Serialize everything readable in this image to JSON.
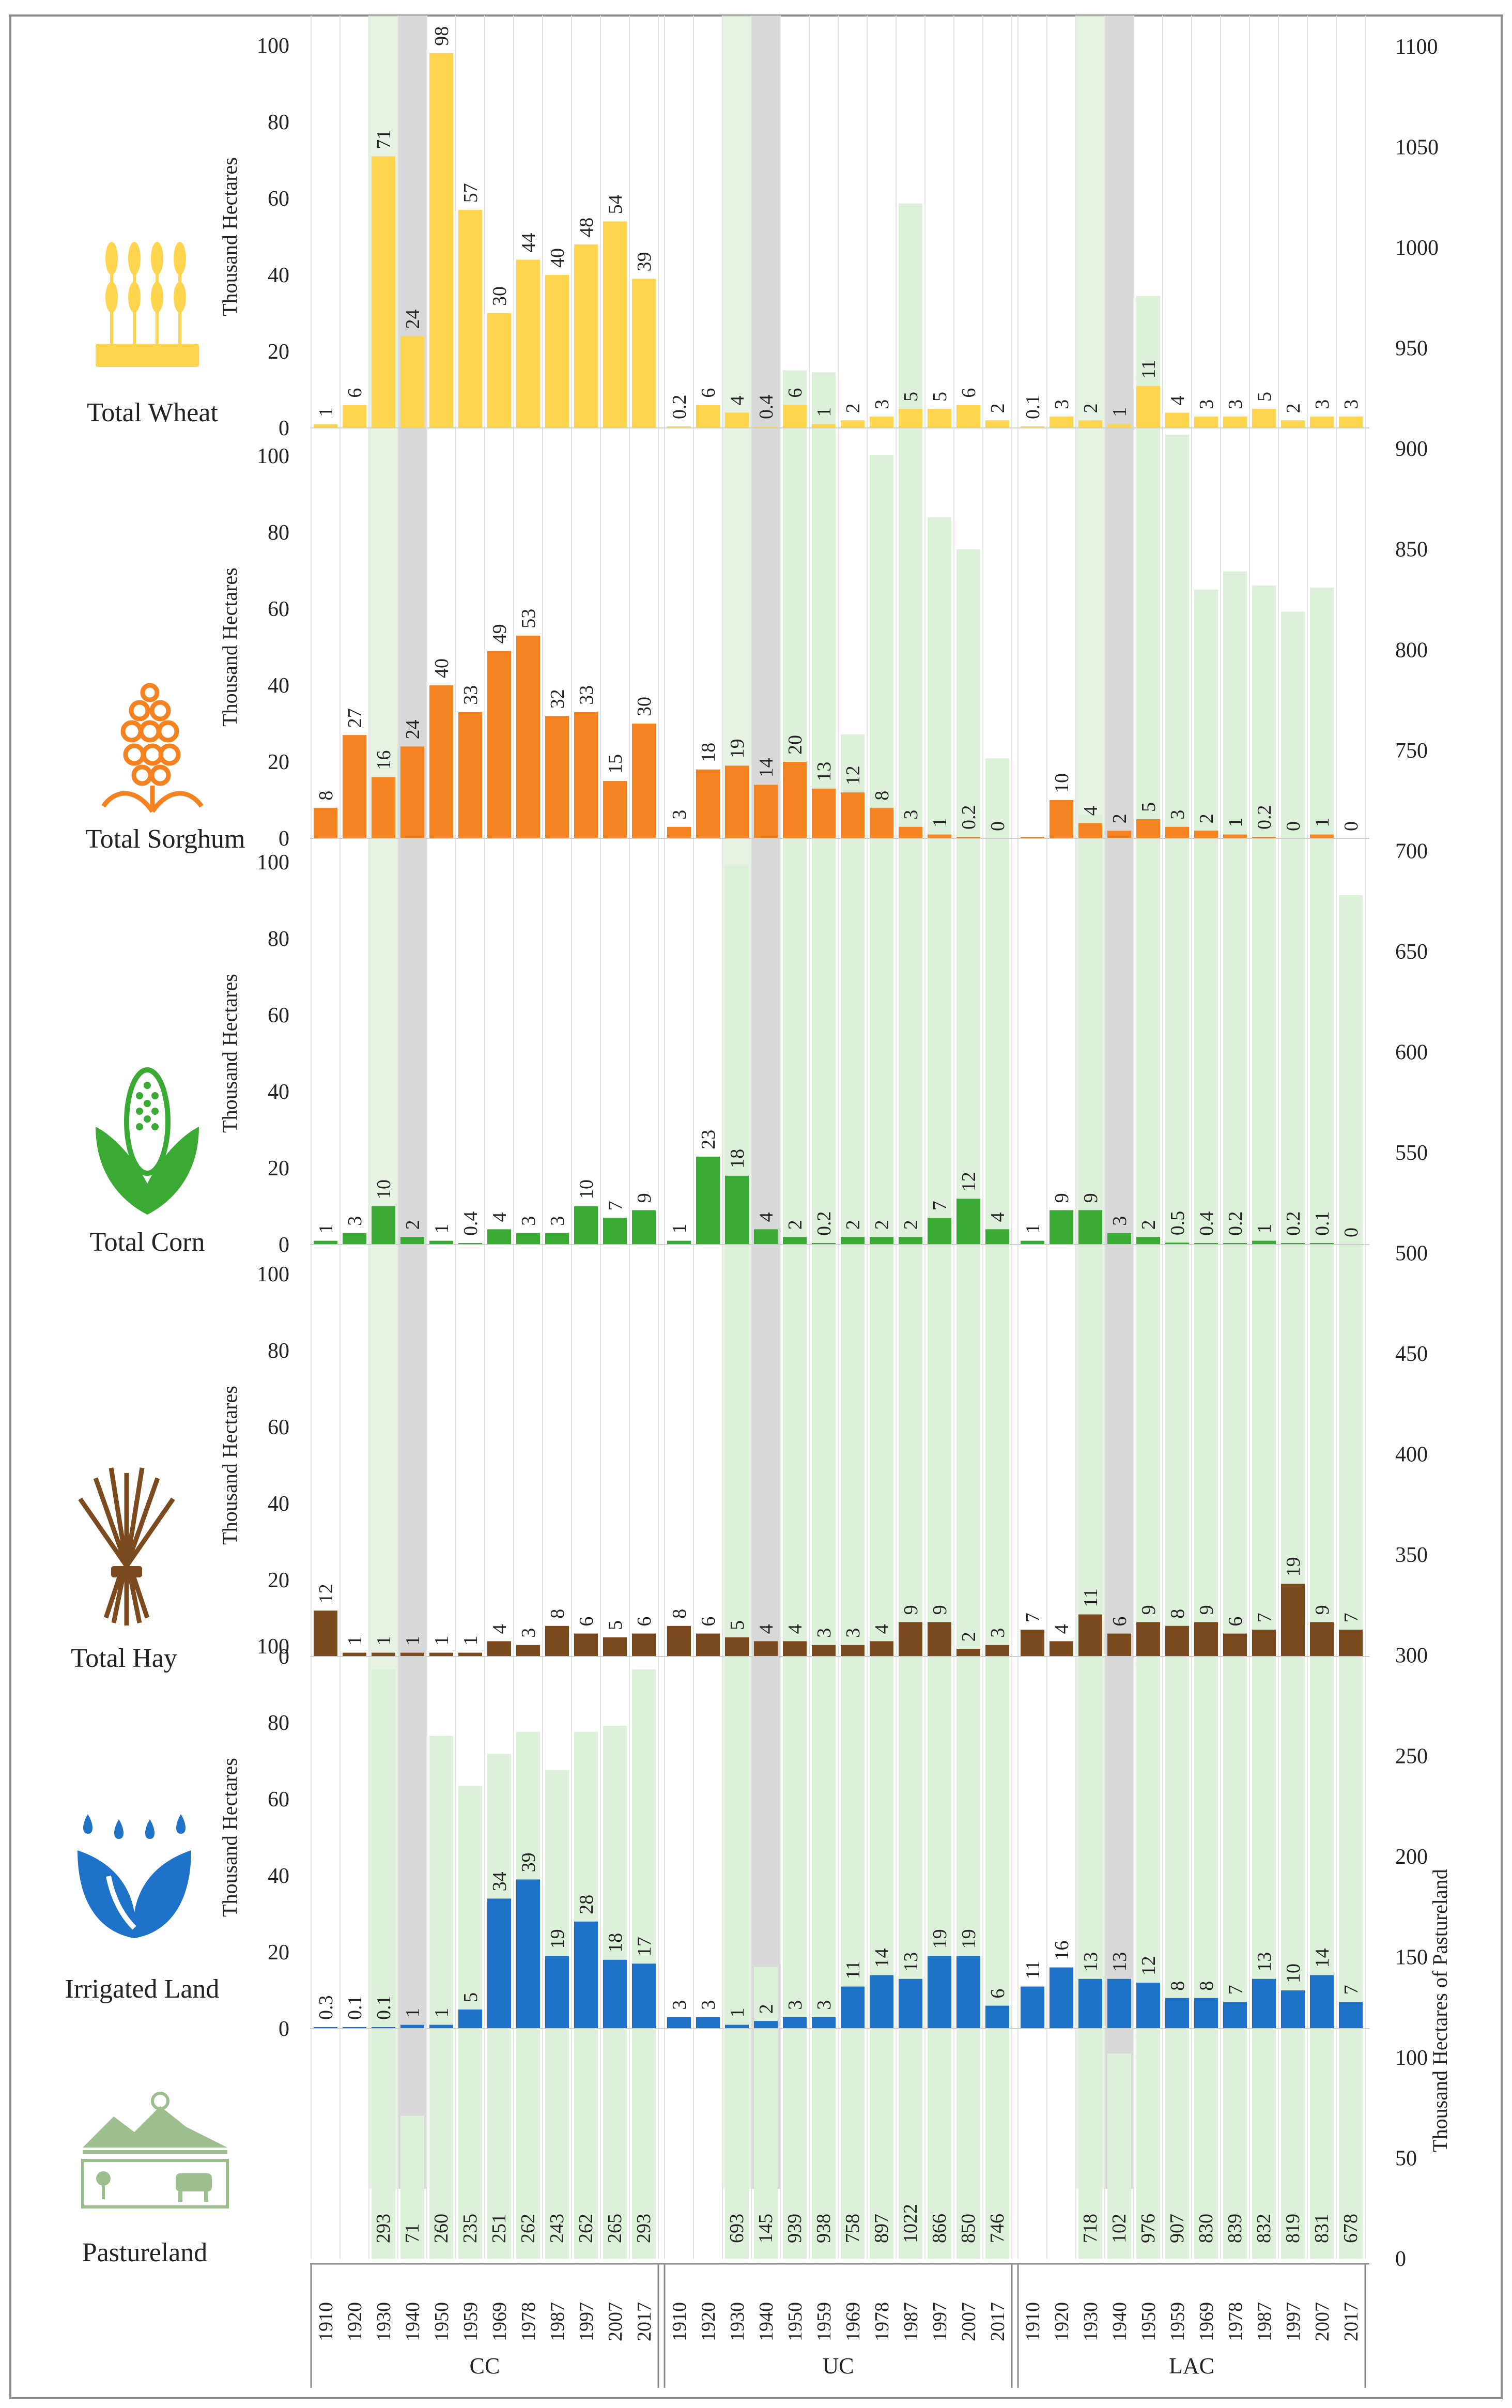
{
  "colors": {
    "wheat": "#FFD54F",
    "sorghum": "#F58220",
    "corn": "#3AAA35",
    "hay": "#7B4A1E",
    "irrigated": "#1E73C8",
    "pasture": "#DDF0D9",
    "pasture_icon": "#9DBF8F",
    "drought_band": "#D8D8D8",
    "frame": "#8C8C8C"
  },
  "icons": {
    "wheat": "wheat-icon",
    "sorghum": "sorghum-icon",
    "corn": "corn-icon",
    "hay": "hay-bundle-icon",
    "irrigated": "water-drops-icon",
    "pasture": "pasture-landscape-icon"
  },
  "chart_data": {
    "type": "bar",
    "left_axis": {
      "label": "Thousand Hectares",
      "ticks": [
        "0",
        "20",
        "40",
        "60",
        "80",
        "100"
      ],
      "ylim": [
        0,
        100
      ]
    },
    "right_axis": {
      "label": "Thousand Hectares of Pastureland",
      "ticks": [
        "0",
        "50",
        "100",
        "150",
        "200",
        "250",
        "300",
        "350",
        "400",
        "450",
        "500",
        "550",
        "600",
        "650",
        "700",
        "750",
        "800",
        "850",
        "900",
        "950",
        "1000",
        "1050",
        "1100"
      ],
      "ylim": [
        0,
        1100
      ]
    },
    "years": [
      "1910",
      "1920",
      "1930",
      "1940",
      "1950",
      "1959",
      "1969",
      "1978",
      "1987",
      "1997",
      "2007",
      "2017"
    ],
    "groups": [
      "CC",
      "UC",
      "LAC"
    ],
    "highlighted_years": [
      "1930",
      "1940"
    ],
    "panels": [
      {
        "key": "wheat",
        "name": "Total Wheat",
        "values": {
          "CC": [
            1,
            6,
            71,
            24,
            98,
            57,
            30,
            44,
            40,
            48,
            54,
            39
          ],
          "UC": [
            0.2,
            6,
            4,
            0.4,
            6,
            1,
            2,
            3,
            5,
            5,
            6,
            2
          ],
          "LAC": [
            0.1,
            3,
            2,
            1,
            11,
            4,
            3,
            3,
            5,
            2,
            3,
            3
          ]
        },
        "labels": {
          "CC": [
            "1",
            "6",
            "71",
            "24",
            "98",
            "57",
            "30",
            "44",
            "40",
            "48",
            "54",
            "39"
          ],
          "UC": [
            "0.2",
            "6",
            "4",
            "0.4",
            "6",
            "1",
            "2",
            "3",
            "5",
            "5",
            "6",
            "2"
          ],
          "LAC": [
            "0.1",
            "3",
            "2",
            "1",
            "11",
            "4",
            "3",
            "3",
            "5",
            "2",
            "3",
            "3"
          ]
        }
      },
      {
        "key": "sorghum",
        "name": "Total Sorghum",
        "values": {
          "CC": [
            8,
            27,
            16,
            24,
            40,
            33,
            49,
            53,
            32,
            33,
            15,
            30
          ],
          "UC": [
            3,
            18,
            19,
            14,
            20,
            13,
            12,
            8,
            3,
            1,
            0.2,
            0
          ],
          "LAC": [
            0.1,
            10,
            4,
            2,
            5,
            3,
            2,
            1,
            0.2,
            0,
            1,
            0
          ]
        },
        "labels": {
          "CC": [
            "8",
            "27",
            "16",
            "24",
            "40",
            "33",
            "49",
            "53",
            "32",
            "33",
            "15",
            "30"
          ],
          "UC": [
            "3",
            "18",
            "19",
            "14",
            "20",
            "13",
            "12",
            "8",
            "3",
            "1",
            "0.2",
            "0"
          ],
          "LAC": [
            "",
            "10",
            "4",
            "2",
            "5",
            "3",
            "2",
            "1",
            "0.2",
            "0",
            "1",
            "0"
          ]
        }
      },
      {
        "key": "corn",
        "name": "Total Corn",
        "values": {
          "CC": [
            1,
            3,
            10,
            2,
            1,
            0.4,
            4,
            3,
            3,
            10,
            7,
            9
          ],
          "UC": [
            1,
            23,
            18,
            4,
            2,
            0.2,
            2,
            2,
            2,
            7,
            12,
            4
          ],
          "LAC": [
            1,
            9,
            9,
            3,
            2,
            0.5,
            0.4,
            0.2,
            1,
            0.2,
            0.1,
            0
          ]
        },
        "labels": {
          "CC": [
            "1",
            "3",
            "10",
            "2",
            "1",
            "0.4",
            "4",
            "3",
            "3",
            "10",
            "7",
            "9"
          ],
          "UC": [
            "1",
            "23",
            "18",
            "4",
            "2",
            "0.2",
            "2",
            "2",
            "2",
            "7",
            "12",
            "4"
          ],
          "LAC": [
            "1",
            "9",
            "9",
            "3",
            "2",
            "0.5",
            "0.4",
            "0.2",
            "1",
            "0.2",
            "0.1",
            "0"
          ]
        }
      },
      {
        "key": "hay",
        "name": "Total Hay",
        "values": {
          "CC": [
            12,
            1,
            1,
            1,
            1,
            1,
            4,
            3,
            8,
            6,
            5,
            6
          ],
          "UC": [
            8,
            6,
            5,
            4,
            4,
            3,
            3,
            4,
            9,
            9,
            2,
            3
          ],
          "LAC": [
            7,
            4,
            11,
            6,
            9,
            8,
            9,
            6,
            7,
            19,
            9,
            7
          ]
        },
        "labels": {
          "CC": [
            "12",
            "1",
            "1",
            "1",
            "1",
            "1",
            "4",
            "3",
            "8",
            "6",
            "5",
            "6"
          ],
          "UC": [
            "8",
            "6",
            "5",
            "4",
            "4",
            "3",
            "3",
            "4",
            "9",
            "9",
            "2",
            "3"
          ],
          "LAC": [
            "7",
            "4",
            "11",
            "6",
            "9",
            "8",
            "9",
            "6",
            "7",
            "19",
            "9",
            "7"
          ]
        }
      },
      {
        "key": "irrigated",
        "name": "Irrigated Land",
        "values": {
          "CC": [
            0.3,
            0.1,
            0.1,
            1,
            1,
            5,
            34,
            39,
            19,
            28,
            18,
            17
          ],
          "UC": [
            3,
            3,
            1,
            2,
            3,
            3,
            11,
            14,
            13,
            19,
            19,
            6
          ],
          "LAC": [
            11,
            16,
            13,
            13,
            12,
            8,
            8,
            7,
            13,
            10,
            14,
            7
          ]
        },
        "labels": {
          "CC": [
            "0.3",
            "0.1",
            "0.1",
            "1",
            "1",
            "5",
            "34",
            "39",
            "19",
            "28",
            "18",
            "17"
          ],
          "UC": [
            "3",
            "3",
            "1",
            "2",
            "3",
            "3",
            "11",
            "14",
            "13",
            "19",
            "19",
            "6"
          ],
          "LAC": [
            "11",
            "16",
            "13",
            "13",
            "12",
            "8",
            "8",
            "7",
            "13",
            "10",
            "14",
            "7"
          ]
        }
      }
    ],
    "pastureland": {
      "name": "Pastureland",
      "values": {
        "CC": [
          null,
          null,
          293,
          71,
          260,
          235,
          251,
          262,
          243,
          262,
          265,
          293
        ],
        "UC": [
          null,
          null,
          693,
          145,
          939,
          938,
          758,
          897,
          1022,
          866,
          850,
          746
        ],
        "LAC": [
          null,
          null,
          718,
          102,
          976,
          907,
          830,
          839,
          832,
          819,
          831,
          678
        ]
      },
      "labels": {
        "CC": [
          "",
          "",
          "293",
          "71",
          "260",
          "235",
          "251",
          "262",
          "243",
          "262",
          "265",
          "293"
        ],
        "UC": [
          "",
          "",
          "693",
          "145",
          "939",
          "938",
          "758",
          "897",
          "1022",
          "866",
          "850",
          "746"
        ],
        "LAC": [
          "",
          "",
          "718",
          "102",
          "976",
          "907",
          "830",
          "839",
          "832",
          "819",
          "831",
          "678"
        ]
      }
    }
  }
}
